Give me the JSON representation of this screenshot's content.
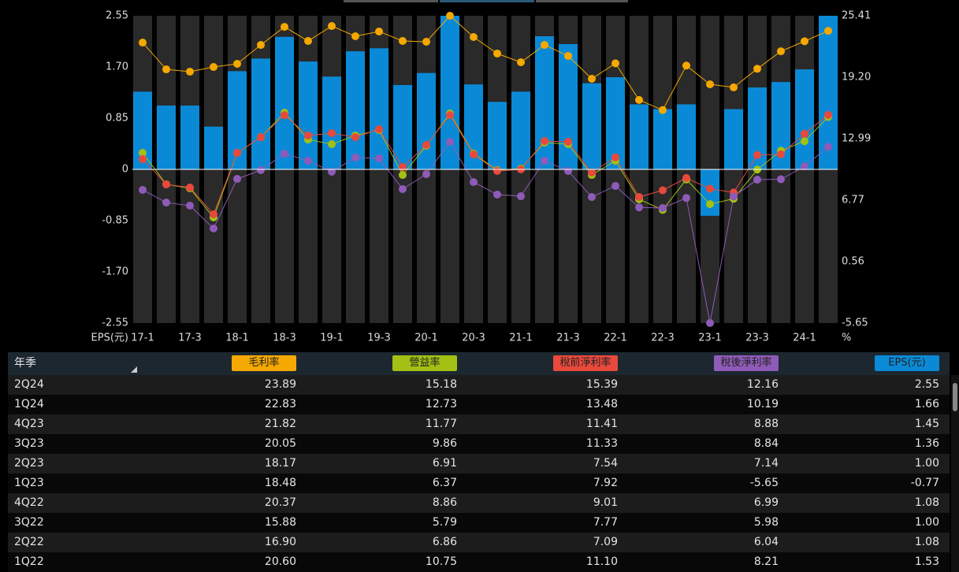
{
  "chart_data": {
    "type": "combo",
    "categories": [
      "17-1",
      null,
      "17-3",
      null,
      "18-1",
      null,
      "18-3",
      null,
      "19-1",
      null,
      "19-3",
      null,
      "20-1",
      null,
      "20-3",
      null,
      "21-1",
      null,
      "21-3",
      null,
      "22-1",
      null,
      "22-3",
      null,
      "23-1",
      null,
      "23-3",
      null,
      "24-1",
      null
    ],
    "ylabel": "EPS(元)",
    "y2label": "%",
    "ylim": [
      -2.55,
      2.55
    ],
    "yticks": [
      -2.55,
      {
        "value": -1.7,
        "label": "-1.70"
      },
      -0.85,
      0,
      0.85,
      {
        "value": 1.7,
        "label": "1.70"
      },
      2.55
    ],
    "y2lim": [
      -5.65,
      25.41
    ],
    "y2ticks": [
      -5.65,
      0.56,
      6.77,
      12.99,
      {
        "value": 19.2,
        "label": "19.20"
      },
      25.41
    ],
    "grid": false,
    "series": [
      {
        "name": "毛利率",
        "type": "line",
        "axis": "y2",
        "color": "#f5a800",
        "values": [
          22.7,
          19.99,
          19.76,
          20.23,
          20.55,
          22.46,
          24.29,
          22.86,
          24.37,
          23.34,
          23.82,
          22.86,
          22.78,
          25.41,
          23.26,
          21.59,
          20.71,
          22.46,
          21.35,
          19.04,
          20.6,
          16.9,
          15.88,
          20.37,
          18.48,
          18.17,
          20.05,
          21.82,
          22.83,
          23.89
        ]
      },
      {
        "name": "營益率",
        "type": "line",
        "axis": "y2",
        "color": "#a3c014",
        "values": [
          11.55,
          8.37,
          7.97,
          5.02,
          11.55,
          13.14,
          15.61,
          12.9,
          12.43,
          13.3,
          13.86,
          9.32,
          12.27,
          15.53,
          11.47,
          9.8,
          9.96,
          12.59,
          12.43,
          9.32,
          10.75,
          6.86,
          5.79,
          8.86,
          6.37,
          6.91,
          9.86,
          11.77,
          12.73,
          15.18
        ]
      },
      {
        "name": "稅前淨利率",
        "type": "line",
        "axis": "y2",
        "color": "#e8493c",
        "values": [
          10.92,
          8.37,
          8.05,
          5.34,
          11.55,
          13.14,
          15.37,
          13.3,
          13.54,
          13.14,
          13.94,
          10.12,
          12.35,
          15.37,
          11.39,
          9.72,
          9.88,
          12.75,
          12.67,
          9.56,
          11.1,
          7.09,
          7.77,
          9.01,
          7.92,
          7.54,
          11.33,
          11.41,
          13.48,
          15.39
        ]
      },
      {
        "name": "稅後淨利率",
        "type": "line",
        "axis": "y2",
        "color": "#8e5bb8",
        "values": [
          7.81,
          6.53,
          6.22,
          3.91,
          8.92,
          9.8,
          11.47,
          10.76,
          9.64,
          11.08,
          11.0,
          7.89,
          9.4,
          12.67,
          8.6,
          7.33,
          7.17,
          10.76,
          9.72,
          7.09,
          8.21,
          6.04,
          5.98,
          6.99,
          -5.65,
          7.14,
          8.84,
          8.88,
          10.19,
          12.16
        ]
      },
      {
        "name": "EPS(元)",
        "type": "bar",
        "axis": "y",
        "color": "#0a8ad6",
        "values": [
          1.29,
          1.06,
          1.06,
          0.71,
          1.63,
          1.84,
          2.2,
          1.79,
          1.54,
          1.96,
          2.01,
          1.4,
          1.6,
          2.55,
          1.41,
          1.12,
          1.29,
          2.21,
          2.08,
          1.43,
          1.53,
          1.08,
          1.0,
          1.08,
          -0.77,
          1.0,
          1.36,
          1.45,
          1.66,
          2.55
        ]
      }
    ]
  },
  "table": {
    "header": "年季",
    "rows": [
      [
        "2Q24",
        "23.89",
        "15.18",
        "15.39",
        "12.16",
        "2.55"
      ],
      [
        "1Q24",
        "22.83",
        "12.73",
        "13.48",
        "10.19",
        "1.66"
      ],
      [
        "4Q23",
        "21.82",
        "11.77",
        "11.41",
        "8.88",
        "1.45"
      ],
      [
        "3Q23",
        "20.05",
        "9.86",
        "11.33",
        "8.84",
        "1.36"
      ],
      [
        "2Q23",
        "18.17",
        "6.91",
        "7.54",
        "7.14",
        "1.00"
      ],
      [
        "1Q23",
        "18.48",
        "6.37",
        "7.92",
        "-5.65",
        "-0.77"
      ],
      [
        "4Q22",
        "20.37",
        "8.86",
        "9.01",
        "6.99",
        "1.08"
      ],
      [
        "3Q22",
        "15.88",
        "5.79",
        "7.77",
        "5.98",
        "1.00"
      ],
      [
        "2Q22",
        "16.90",
        "6.86",
        "7.09",
        "6.04",
        "1.08"
      ],
      [
        "1Q22",
        "20.60",
        "10.75",
        "11.10",
        "8.21",
        "1.53"
      ]
    ]
  }
}
